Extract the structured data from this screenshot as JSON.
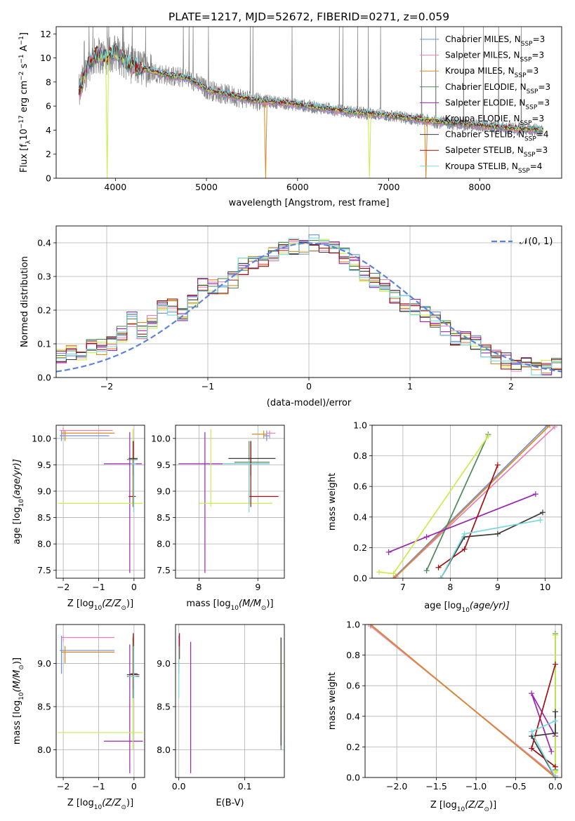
{
  "title": "PLATE=1217, MJD=52672, FIBERID=0271, z=0.059",
  "colors": [
    "#6f8fd8",
    "#e882b4",
    "#d98a26",
    "#4d8a5a",
    "#9b27b0",
    "#c9ec4a",
    "#3b3b3b",
    "#a01010",
    "#79d8dc"
  ],
  "legend": [
    {
      "label": "Chabrier MILES, N",
      "sub": "SSP",
      "suffix": "=3"
    },
    {
      "label": "Salpeter MILES, N",
      "sub": "SSP",
      "suffix": "=3"
    },
    {
      "label": "Kroupa MILES, N",
      "sub": "SSP",
      "suffix": "=3"
    },
    {
      "label": "Chabrier ELODIE, N",
      "sub": "SSP",
      "suffix": "=3"
    },
    {
      "label": "Salpeter ELODIE, N",
      "sub": "SSP",
      "suffix": "=3"
    },
    {
      "label": "Kroupa ELODIE, N",
      "sub": "SSP",
      "suffix": "=3"
    },
    {
      "label": "Chabrier STELIB, N",
      "sub": "SSP",
      "suffix": "=4"
    },
    {
      "label": "Salpeter STELIB, N",
      "sub": "SSP",
      "suffix": "=3"
    },
    {
      "label": "Kroupa STELIB, N",
      "sub": "SSP",
      "suffix": "=4"
    }
  ],
  "chart_data": [
    {
      "id": "spectrum",
      "type": "line",
      "xlabel": "wavelength [Angstrom, rest frame]",
      "ylabel": "Flux [f",
      "ylabel_sub": "λ",
      "ylabel_rest": "10",
      "ylabel_exp1": "−17",
      "ylabel_rest2": " erg cm",
      "ylabel_exp2": "−2",
      "ylabel_rest3": " s",
      "ylabel_exp3": "−1",
      "ylabel_rest4": " A",
      "ylabel_exp4": "−1",
      "ylabel_end": "]",
      "xlim": [
        3350,
        8900
      ],
      "ylim": [
        0,
        12.6
      ],
      "xticks": [
        4000,
        5000,
        6000,
        7000,
        8000
      ],
      "yticks": [
        0,
        2,
        4,
        6,
        8,
        10,
        12
      ],
      "continuum": [
        [
          3600,
          7.0
        ],
        [
          3700,
          9.5
        ],
        [
          3800,
          10.3
        ],
        [
          3900,
          10.0
        ],
        [
          4000,
          10.5
        ],
        [
          4100,
          9.8
        ],
        [
          4200,
          9.3
        ],
        [
          4400,
          8.9
        ],
        [
          4600,
          8.5
        ],
        [
          4800,
          8.3
        ],
        [
          5000,
          7.4
        ],
        [
          5200,
          7.0
        ],
        [
          5500,
          6.5
        ],
        [
          5800,
          6.3
        ],
        [
          6000,
          6.1
        ],
        [
          6300,
          5.8
        ],
        [
          6600,
          5.5
        ],
        [
          6900,
          5.3
        ],
        [
          7200,
          5.0
        ],
        [
          7500,
          4.7
        ],
        [
          7800,
          4.5
        ],
        [
          8100,
          4.3
        ],
        [
          8400,
          4.1
        ],
        [
          8700,
          4.0
        ]
      ]
    },
    {
      "id": "residuals",
      "type": "histogram",
      "xlabel": "(data-model)/error",
      "ylabel": "Normed distribution",
      "xlim": [
        -2.5,
        2.5
      ],
      "ylim": [
        0,
        0.45
      ],
      "xticks": [
        -2,
        -1,
        0,
        1,
        2
      ],
      "yticks": [
        0.0,
        0.1,
        0.2,
        0.3,
        0.4
      ],
      "legend_label": "𝒩(0, 1)",
      "bins": [
        -2.5,
        -2.4,
        -2.3,
        -2.2,
        -2.1,
        -2.0,
        -1.9,
        -1.8,
        -1.7,
        -1.6,
        -1.5,
        -1.4,
        -1.3,
        -1.2,
        -1.1,
        -1.0,
        -0.9,
        -0.8,
        -0.7,
        -0.6,
        -0.5,
        -0.4,
        -0.3,
        -0.2,
        -0.1,
        0.0,
        0.1,
        0.2,
        0.3,
        0.4,
        0.5,
        0.6,
        0.7,
        0.8,
        0.9,
        1.0,
        1.1,
        1.2,
        1.3,
        1.4,
        1.5,
        1.6,
        1.7,
        1.8,
        1.9,
        2.0,
        2.1,
        2.2,
        2.3,
        2.4,
        2.5
      ],
      "base": [
        0.06,
        0.07,
        0.075,
        0.09,
        0.09,
        0.1,
        0.13,
        0.17,
        0.14,
        0.16,
        0.21,
        0.21,
        0.19,
        0.23,
        0.28,
        0.27,
        0.27,
        0.29,
        0.33,
        0.34,
        0.35,
        0.37,
        0.38,
        0.39,
        0.39,
        0.4,
        0.39,
        0.38,
        0.36,
        0.34,
        0.31,
        0.29,
        0.27,
        0.24,
        0.22,
        0.21,
        0.19,
        0.17,
        0.15,
        0.12,
        0.12,
        0.1,
        0.08,
        0.06,
        0.05,
        0.04,
        0.035,
        0.03,
        0.03,
        0.035
      ]
    },
    {
      "id": "age_vs_Z",
      "type": "errorbar",
      "xlabel": "Z [log",
      "xlabel_sub": "10",
      "xlabel_rest": "(Z/Z",
      "xlabel_sub2": "⊙",
      "xlabel_end": ")]",
      "ylabel": "age  [log",
      "ylabel_sub": "10",
      "ylabel_rest": "(age/yr)]",
      "xlim": [
        -2.2,
        0.3
      ],
      "ylim": [
        7.35,
        10.25
      ],
      "xticks": [
        -2,
        -1,
        0
      ],
      "yticks": [
        7.5,
        8.0,
        8.5,
        9.0,
        9.5,
        10.0
      ],
      "bars": [
        {
          "c": 0,
          "x": -2.05,
          "y": 10.05,
          "xe": [
            -2.1,
            -0.7
          ],
          "ye": [
            9.95,
            10.15
          ]
        },
        {
          "c": 1,
          "x": -2.0,
          "y": 10.15,
          "xe": [
            -2.1,
            -0.6
          ],
          "ye": [
            10.05,
            10.2
          ]
        },
        {
          "c": 2,
          "x": -1.95,
          "y": 10.1,
          "xe": [
            -2.05,
            -0.55
          ],
          "ye": [
            9.95,
            10.15
          ]
        },
        {
          "c": 3,
          "x": -0.03,
          "y": 9.6,
          "xe": [
            -0.2,
            0.1
          ],
          "ye": [
            8.7,
            9.95
          ]
        },
        {
          "c": 4,
          "x": -0.12,
          "y": 9.52,
          "xe": [
            -0.85,
            0.22
          ],
          "ye": [
            7.45,
            10.12
          ]
        },
        {
          "c": 5,
          "x": -0.03,
          "y": 8.77,
          "xe": [
            -2.15,
            0.25
          ],
          "ye": [
            8.7,
            10.18
          ]
        },
        {
          "c": 6,
          "x": -0.02,
          "y": 9.62,
          "xe": [
            -0.15,
            0.1
          ],
          "ye": [
            9.3,
            9.95
          ]
        },
        {
          "c": 7,
          "x": -0.02,
          "y": 8.9,
          "xe": [
            -0.15,
            0.05
          ],
          "ye": [
            8.7,
            9.95
          ]
        },
        {
          "c": 8,
          "x": -0.01,
          "y": 9.52,
          "xe": [
            -0.1,
            0.05
          ],
          "ye": [
            8.6,
            9.6
          ]
        }
      ]
    },
    {
      "id": "age_vs_mass",
      "type": "errorbar",
      "xlabel": "mass [log",
      "xlabel_sub": "10",
      "xlabel_rest": "(M/M",
      "xlabel_sub2": "⊙",
      "xlabel_end": ")]",
      "xlim": [
        7.6,
        9.45
      ],
      "ylim": [
        7.35,
        10.25
      ],
      "xticks": [
        8,
        9
      ],
      "yticks": [
        7.5,
        8.0,
        8.5,
        9.0,
        9.5,
        10.0
      ],
      "bars": [
        {
          "c": 0,
          "x": 9.15,
          "y": 10.05,
          "xe": [
            9.1,
            9.2
          ],
          "ye": [
            9.95,
            10.15
          ]
        },
        {
          "c": 1,
          "x": 9.2,
          "y": 10.1,
          "xe": [
            9.15,
            9.3
          ],
          "ye": [
            10.0,
            10.15
          ]
        },
        {
          "c": 2,
          "x": 9.1,
          "y": 10.08,
          "xe": [
            8.9,
            9.15
          ],
          "ye": [
            10.0,
            10.15
          ]
        },
        {
          "c": 3,
          "x": 8.85,
          "y": 9.55,
          "xe": [
            8.6,
            9.2
          ],
          "ye": [
            8.75,
            9.95
          ]
        },
        {
          "c": 4,
          "x": 8.1,
          "y": 9.52,
          "xe": [
            7.65,
            9.2
          ],
          "ye": [
            7.45,
            10.12
          ]
        },
        {
          "c": 5,
          "x": 8.2,
          "y": 8.77,
          "xe": [
            8.0,
            9.25
          ],
          "ye": [
            8.7,
            10.18
          ]
        },
        {
          "c": 6,
          "x": 8.88,
          "y": 9.62,
          "xe": [
            8.5,
            9.3
          ],
          "ye": [
            9.3,
            9.95
          ]
        },
        {
          "c": 7,
          "x": 8.88,
          "y": 8.9,
          "xe": [
            8.85,
            9.35
          ],
          "ye": [
            8.7,
            9.95
          ]
        },
        {
          "c": 8,
          "x": 8.85,
          "y": 9.52,
          "xe": [
            8.4,
            9.2
          ],
          "ye": [
            8.6,
            9.6
          ]
        }
      ]
    },
    {
      "id": "weight_vs_age",
      "type": "line",
      "xlabel": "age  [log",
      "xlabel_sub": "10",
      "xlabel_rest": "(age/yr)]",
      "ylabel": "mass weight",
      "xlim": [
        6.35,
        10.35
      ],
      "ylim": [
        0,
        1
      ],
      "xticks": [
        7,
        8,
        9,
        10
      ],
      "yticks": [
        0.0,
        0.2,
        0.4,
        0.6,
        0.8,
        1.0
      ],
      "series": [
        {
          "c": 0,
          "x": [
            6.8,
            10.05
          ],
          "y": [
            0.0,
            1.0
          ]
        },
        {
          "c": 1,
          "x": [
            6.85,
            10.2
          ],
          "y": [
            0.01,
            0.99
          ]
        },
        {
          "c": 2,
          "x": [
            6.82,
            10.1
          ],
          "y": [
            0.0,
            1.0
          ]
        },
        {
          "c": 3,
          "x": [
            7.5,
            8.8
          ],
          "y": [
            0.05,
            0.94
          ]
        },
        {
          "c": 4,
          "x": [
            6.7,
            7.5,
            9.8
          ],
          "y": [
            0.17,
            0.27,
            0.55
          ]
        },
        {
          "c": 5,
          "x": [
            6.5,
            6.8,
            8.8
          ],
          "y": [
            0.04,
            0.03,
            0.93
          ]
        },
        {
          "c": 6,
          "x": [
            7.8,
            8.3,
            9.0,
            9.95
          ],
          "y": [
            0.0,
            0.27,
            0.29,
            0.43
          ]
        },
        {
          "c": 7,
          "x": [
            7.75,
            8.3,
            9.0
          ],
          "y": [
            0.07,
            0.19,
            0.74
          ]
        },
        {
          "c": 8,
          "x": [
            7.8,
            8.3,
            9.9
          ],
          "y": [
            0.0,
            0.29,
            0.38
          ]
        }
      ]
    },
    {
      "id": "mass_vs_Z",
      "type": "errorbar",
      "xlabel": "Z [log",
      "xlabel_sub": "10",
      "xlabel_rest": "(Z/Z",
      "xlabel_sub2": "⊙",
      "xlabel_end": ")]",
      "ylabel": "mass [log",
      "ylabel_sub": "10",
      "ylabel_rest": "(M/M",
      "ylabel_sub2": "⊙",
      "ylabel_end": ")]",
      "xlim": [
        -2.2,
        0.3
      ],
      "ylim": [
        7.68,
        9.45
      ],
      "xticks": [
        -2,
        -1,
        0
      ],
      "yticks": [
        8.0,
        8.5,
        9.0
      ],
      "bars": [
        {
          "c": 0,
          "x": -2.05,
          "y": 9.15,
          "xe": [
            -2.1,
            -0.55
          ],
          "ye": [
            8.88,
            9.32
          ]
        },
        {
          "c": 1,
          "x": -2.0,
          "y": 9.3,
          "xe": [
            -2.05,
            -0.55
          ],
          "ye": [
            9.25,
            9.32
          ]
        },
        {
          "c": 2,
          "x": -1.95,
          "y": 9.13,
          "xe": [
            -2.05,
            -0.55
          ],
          "ye": [
            9.0,
            9.2
          ]
        },
        {
          "c": 3,
          "x": -0.03,
          "y": 8.85,
          "xe": [
            -0.2,
            0.15
          ],
          "ye": [
            8.6,
            9.3
          ]
        },
        {
          "c": 4,
          "x": -0.12,
          "y": 8.1,
          "xe": [
            -0.85,
            0.25
          ],
          "ye": [
            7.73,
            9.22
          ]
        },
        {
          "c": 5,
          "x": -0.03,
          "y": 8.2,
          "xe": [
            -2.15,
            0.25
          ],
          "ye": [
            8.0,
            9.25
          ]
        },
        {
          "c": 6,
          "x": -0.02,
          "y": 8.87,
          "xe": [
            -0.2,
            0.15
          ],
          "ye": [
            8.6,
            9.32
          ]
        },
        {
          "c": 7,
          "x": -0.02,
          "y": 8.88,
          "xe": [
            -0.1,
            0.1
          ],
          "ye": [
            8.7,
            9.35
          ]
        },
        {
          "c": 8,
          "x": -0.01,
          "y": 8.85,
          "xe": [
            -0.15,
            0.05
          ],
          "ye": [
            8.6,
            9.2
          ]
        }
      ]
    },
    {
      "id": "mass_vs_ebv",
      "type": "errorbar",
      "xlabel": "E(B-V)",
      "xlim": [
        -0.005,
        0.16
      ],
      "ylim": [
        7.68,
        9.45
      ],
      "xticks": [
        0.0,
        0.1
      ],
      "yticks": [
        8.0,
        8.5,
        9.0
      ],
      "bars": [
        {
          "c": 0,
          "x": 0.0,
          "y": 9.15,
          "xe": [
            0.0,
            0.0
          ],
          "ye": [
            8.88,
            9.32
          ]
        },
        {
          "c": 1,
          "x": 0.0,
          "y": 9.1,
          "xe": [
            0.0,
            0.0
          ],
          "ye": [
            8.9,
            9.3
          ]
        },
        {
          "c": 2,
          "x": 0.0,
          "y": 9.13,
          "xe": [
            0.0,
            0.0
          ],
          "ye": [
            8.95,
            9.2
          ]
        },
        {
          "c": 3,
          "x": 0.155,
          "y": 9.0,
          "xe": [
            0.155,
            0.155
          ],
          "ye": [
            8.0,
            9.3
          ]
        },
        {
          "c": 4,
          "x": 0.018,
          "y": 8.5,
          "xe": [
            0.018,
            0.018
          ],
          "ye": [
            7.73,
            9.25
          ]
        },
        {
          "c": 5,
          "x": 0.155,
          "y": 8.7,
          "xe": [
            0.155,
            0.155
          ],
          "ye": [
            8.2,
            9.25
          ]
        },
        {
          "c": 6,
          "x": 0.155,
          "y": 8.9,
          "xe": [
            0.155,
            0.155
          ],
          "ye": [
            8.05,
            9.3
          ]
        },
        {
          "c": 7,
          "x": 0.001,
          "y": 9.2,
          "xe": [
            0.001,
            0.001
          ],
          "ye": [
            9.05,
            9.35
          ]
        },
        {
          "c": 8,
          "x": 0.0,
          "y": 8.9,
          "xe": [
            0.0,
            0.0
          ],
          "ye": [
            8.6,
            9.2
          ]
        }
      ]
    },
    {
      "id": "weight_vs_Z",
      "type": "line",
      "xlabel": "Z [log",
      "xlabel_sub": "10",
      "xlabel_rest": "(Z/Z",
      "xlabel_sub2": "⊙",
      "xlabel_end": ")]",
      "ylabel": "mass weight",
      "xlim": [
        -2.4,
        0.08
      ],
      "ylim": [
        0,
        1
      ],
      "xticks": [
        -2.0,
        -1.5,
        -1.0,
        -0.5,
        0.0
      ],
      "yticks": [
        0.0,
        0.2,
        0.4,
        0.6,
        0.8,
        1.0
      ],
      "series": [
        {
          "c": 0,
          "x": [
            -2.33,
            0.0
          ],
          "y": [
            1.0,
            0.0
          ]
        },
        {
          "c": 1,
          "x": [
            -2.33,
            0.0
          ],
          "y": [
            0.99,
            0.01
          ]
        },
        {
          "c": 2,
          "x": [
            -2.33,
            0.0
          ],
          "y": [
            1.0,
            0.0
          ]
        },
        {
          "c": 3,
          "x": [
            0.0,
            0.0
          ],
          "y": [
            0.05,
            0.94
          ]
        },
        {
          "c": 4,
          "x": [
            -0.05,
            -0.3,
            0.0
          ],
          "y": [
            0.17,
            0.55,
            0.27
          ]
        },
        {
          "c": 5,
          "x": [
            0.0,
            0.0,
            0.0
          ],
          "y": [
            0.04,
            0.03,
            0.93
          ]
        },
        {
          "c": 6,
          "x": [
            0.0,
            -0.3,
            0.0,
            0.0
          ],
          "y": [
            0.0,
            0.27,
            0.29,
            0.43
          ]
        },
        {
          "c": 7,
          "x": [
            0.0,
            -0.3,
            0.0
          ],
          "y": [
            0.07,
            0.19,
            0.74
          ]
        },
        {
          "c": 8,
          "x": [
            0.0,
            -0.3,
            0.0
          ],
          "y": [
            0.0,
            0.3,
            0.37
          ]
        }
      ]
    }
  ]
}
